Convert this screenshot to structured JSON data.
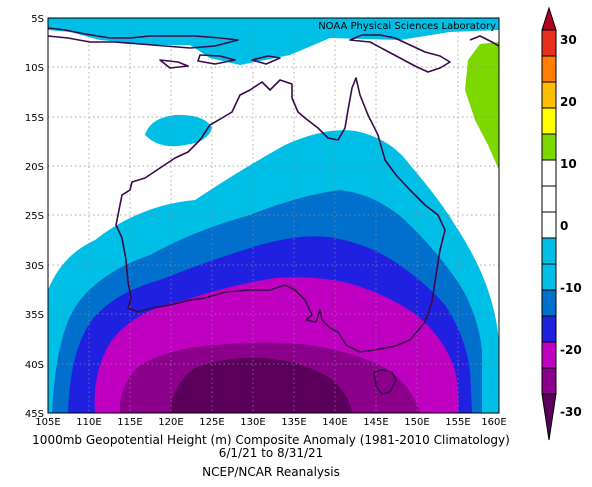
{
  "map": {
    "credit": "NOAA Physical Sciences Laboratory",
    "lat_labels": [
      "5S",
      "10S",
      "15S",
      "20S",
      "25S",
      "30S",
      "35S",
      "40S",
      "45S"
    ],
    "lon_labels": [
      "105E",
      "110E",
      "115E",
      "120E",
      "125E",
      "130E",
      "135E",
      "140E",
      "145E",
      "150E",
      "155E",
      "160E"
    ],
    "extent": {
      "lon": [
        105,
        160
      ],
      "lat": [
        -45,
        -5
      ]
    }
  },
  "caption": {
    "line1": "1000mb Geopotential Height (m) Composite Anomaly (1981-2010 Climatology)",
    "line2": "6/1/21 to 8/31/21",
    "line3": "NCEP/NCAR Reanalysis"
  },
  "colorbar": {
    "labels": [
      "30",
      "20",
      "10",
      "0",
      "-10",
      "-20",
      "-30"
    ],
    "colors": {
      "c_gt30": "#b4001e",
      "c_25_30": "#e8301e",
      "c_20_25": "#ff7d00",
      "c_15_20": "#ffbd00",
      "c_10_15": "#ffff00",
      "c_5_10": "#7dd800",
      "c_0_5": "#ffffff",
      "c_m5_0": "#ffffff",
      "c_m10_m5": "#00bfe6",
      "c_m15_m10": "#0070cc",
      "c_m20_m15": "#2020e0",
      "c_m25_m20": "#c000c0",
      "c_m30_m25": "#8b008b",
      "c_lt_m30": "#5a005a"
    }
  }
}
